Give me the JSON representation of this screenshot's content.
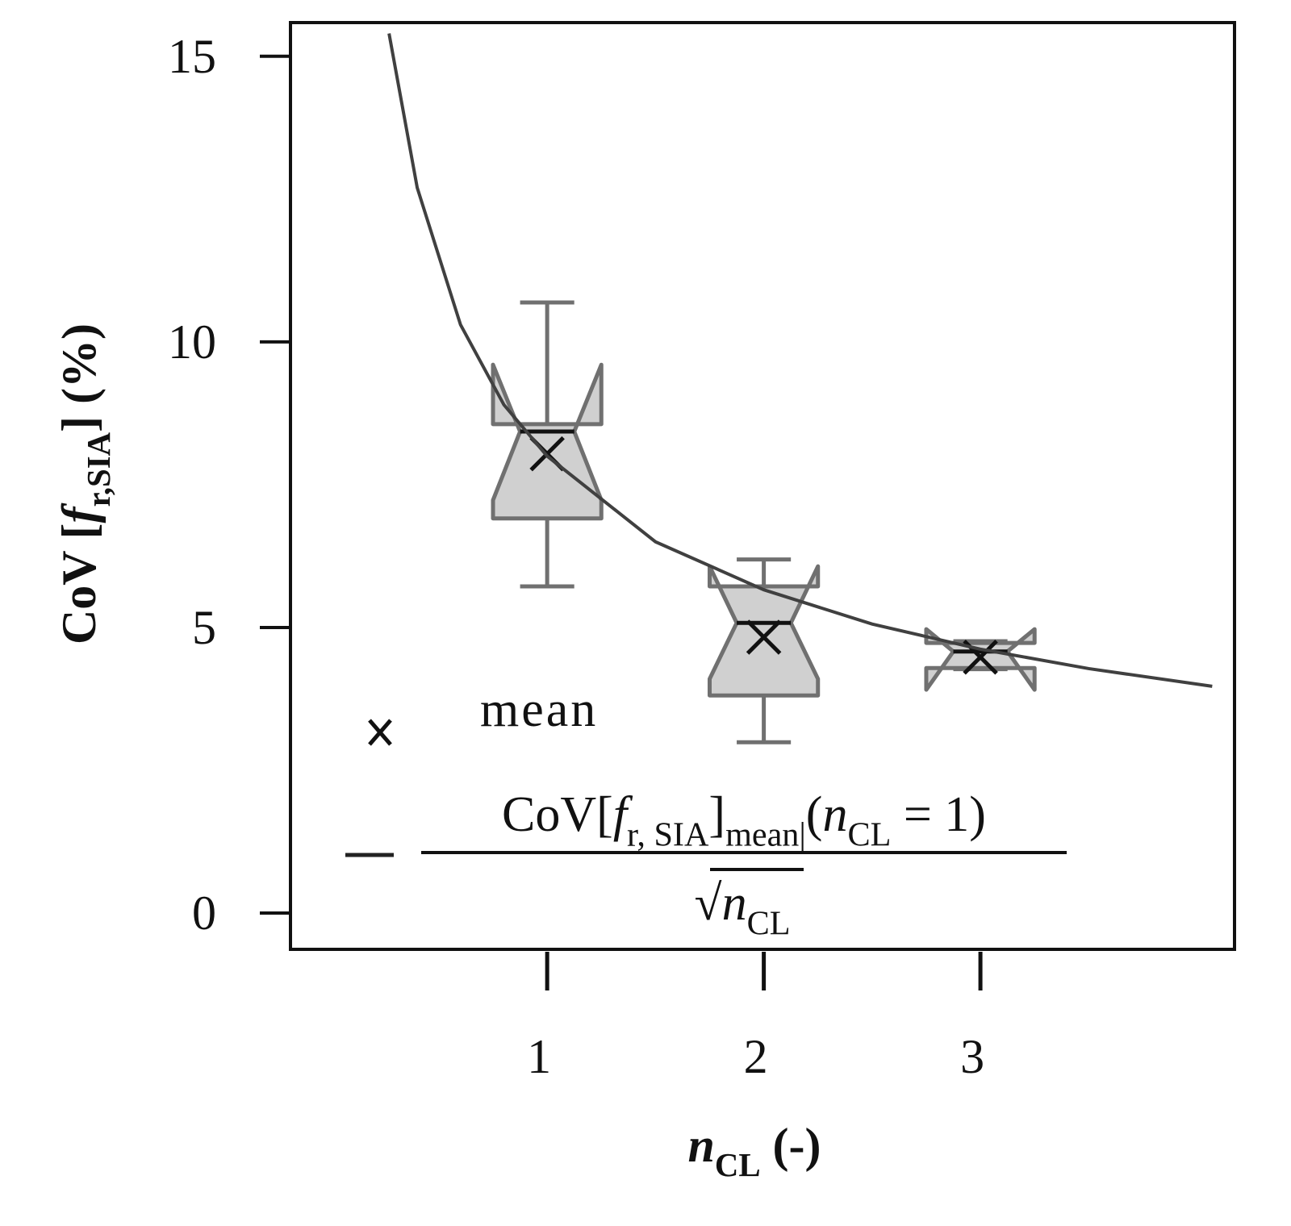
{
  "chart_data": {
    "type": "boxplot",
    "y_label": [
      {
        "text": "CoV ["
      },
      {
        "text": "f",
        "italic": true
      },
      {
        "text": "r,SIA",
        "sub": true
      },
      {
        "text": "] (%)"
      }
    ],
    "x_label": [
      {
        "text": "n",
        "italic": true
      },
      {
        "text": "CL",
        "sub": true
      },
      {
        "text": " (-)"
      }
    ],
    "xlim": [
      -0.185,
      4.173
    ],
    "ylim": [
      -0.635,
      15.59
    ],
    "xticks": [
      1,
      2,
      3
    ],
    "yticks": [
      0,
      5,
      10,
      15
    ],
    "box_color": "#d0d0d0",
    "edge_color": "#707070",
    "boxes": {
      "x": [
        1,
        2,
        3
      ],
      "whislo": [
        5.72,
        2.99,
        4.27
      ],
      "q1": [
        6.91,
        3.81,
        4.29
      ],
      "notch_lo": [
        7.23,
        4.1,
        3.91
      ],
      "med": [
        8.43,
        5.08,
        4.58
      ],
      "notch_hi": [
        9.6,
        6.07,
        4.97
      ],
      "q3": [
        8.56,
        5.72,
        4.73
      ],
      "whishi": [
        10.69,
        6.19,
        4.76
      ],
      "mean": [
        8.04,
        4.83,
        4.48
      ]
    },
    "curve": {
      "color": "#404040",
      "x": [
        0.27,
        0.4,
        0.6,
        0.8,
        1,
        1.5,
        2,
        2.5,
        3,
        3.5,
        4.07
      ],
      "y": [
        15.4,
        12.7,
        10.3,
        8.9,
        8.0,
        6.5,
        5.66,
        5.06,
        4.62,
        4.28,
        3.97
      ]
    },
    "legend": {
      "mean_label": "mean",
      "formula_numerator": [
        {
          "text": "CoV["
        },
        {
          "text": "f",
          "italic": true
        },
        {
          "text": "r, SIA",
          "sub": true
        },
        {
          "text": "]"
        },
        {
          "text": "mean|",
          "sub": true
        },
        {
          "text": "("
        },
        {
          "text": "n",
          "italic": true
        },
        {
          "text": "CL",
          "sub": true
        },
        {
          "text": " = 1)"
        }
      ],
      "formula_denominator": [
        {
          "text": "√"
        },
        {
          "text": "n",
          "italic": true
        },
        {
          "text": "CL",
          "sub": true
        }
      ]
    }
  }
}
